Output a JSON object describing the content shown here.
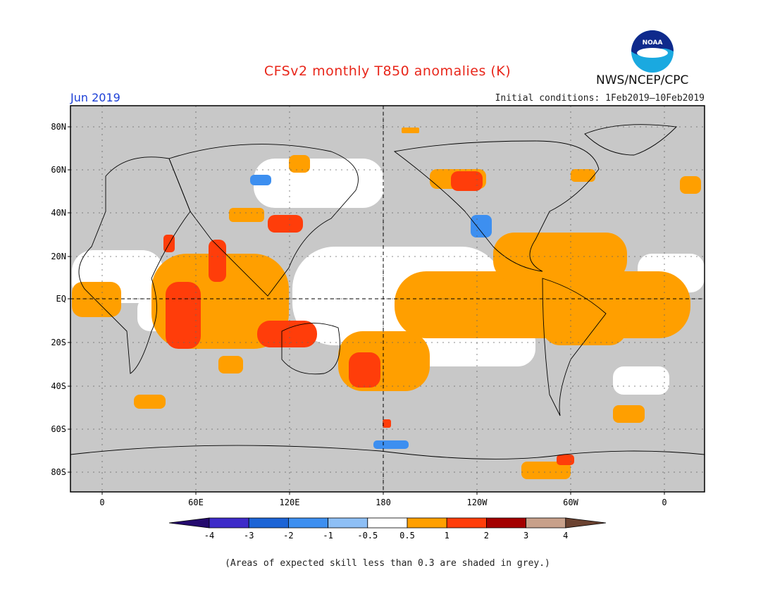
{
  "header": {
    "title": "CFSv2 monthly T850 anomalies (K)",
    "month": "Jun 2019",
    "initial_conditions": "Initial conditions: 1Feb2019–10Feb2019",
    "agency": "NWS/NCEP/CPC",
    "logo_text": "NOAA"
  },
  "colors": {
    "title": "#e8261a",
    "month": "#1c3fd6",
    "skill_grey": "#c8c8c8",
    "coast": "#000000"
  },
  "map": {
    "lat_labels": [
      "80N",
      "60N",
      "40N",
      "20N",
      "EQ",
      "20S",
      "40S",
      "60S",
      "80S"
    ],
    "lon_labels": [
      "0",
      "60E",
      "120E",
      "180",
      "120W",
      "60W",
      "0"
    ]
  },
  "legend": {
    "colors": [
      "#240a6e",
      "#3d2bc9",
      "#1c64d6",
      "#3d8ff0",
      "#8ebff5",
      "#ffffff",
      "#ff9f00",
      "#ff3d0a",
      "#a30000",
      "#c8a08a",
      "#6b4230"
    ],
    "labels": [
      "-4",
      "-3",
      "-2",
      "-1",
      "-0.5",
      "0.5",
      "1",
      "2",
      "3",
      "4"
    ]
  },
  "footnote": "(Areas of expected skill less than 0.3 are shaded in grey.)"
}
